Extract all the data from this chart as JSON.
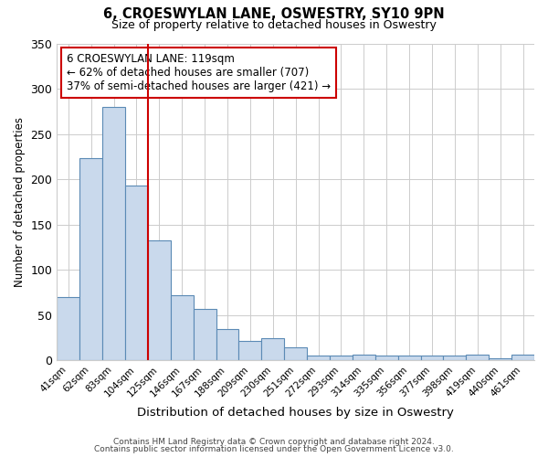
{
  "title": "6, CROESWYLAN LANE, OSWESTRY, SY10 9PN",
  "subtitle": "Size of property relative to detached houses in Oswestry",
  "xlabel": "Distribution of detached houses by size in Oswestry",
  "ylabel": "Number of detached properties",
  "bar_labels": [
    "41sqm",
    "62sqm",
    "83sqm",
    "104sqm",
    "125sqm",
    "146sqm",
    "167sqm",
    "188sqm",
    "209sqm",
    "230sqm",
    "251sqm",
    "272sqm",
    "293sqm",
    "314sqm",
    "335sqm",
    "356sqm",
    "377sqm",
    "398sqm",
    "419sqm",
    "440sqm",
    "461sqm"
  ],
  "bar_values": [
    70,
    223,
    280,
    193,
    133,
    72,
    57,
    35,
    22,
    25,
    15,
    5,
    5,
    6,
    5,
    5,
    5,
    5,
    6,
    2,
    6
  ],
  "bar_color": "#c9d9ec",
  "bar_edge_color": "#5b8ab5",
  "vline_color": "#cc0000",
  "ylim": [
    0,
    350
  ],
  "yticks": [
    0,
    50,
    100,
    150,
    200,
    250,
    300,
    350
  ],
  "annotation_title": "6 CROESWYLAN LANE: 119sqm",
  "annotation_line1": "← 62% of detached houses are smaller (707)",
  "annotation_line2": "37% of semi-detached houses are larger (421) →",
  "annotation_box_color": "#ffffff",
  "annotation_box_edge": "#cc0000",
  "footer1": "Contains HM Land Registry data © Crown copyright and database right 2024.",
  "footer2": "Contains public sector information licensed under the Open Government Licence v3.0."
}
